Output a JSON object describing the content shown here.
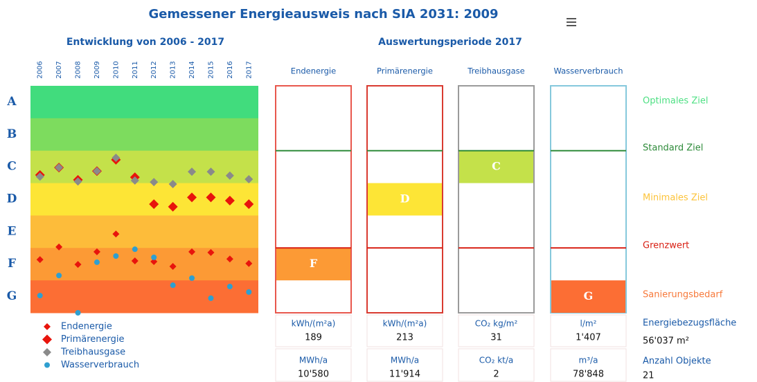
{
  "header": {
    "title": "Gemessener Energieausweis nach SIA 2031: 2009"
  },
  "chart_data": {
    "type": "scatter",
    "title": "Entwicklung von 2006 - 2017",
    "categories": [
      "2006",
      "2007",
      "2008",
      "2009",
      "2010",
      "2011",
      "2012",
      "2013",
      "2014",
      "2015",
      "2016",
      "2017"
    ],
    "classes": [
      "A",
      "B",
      "C",
      "D",
      "E",
      "F",
      "G"
    ],
    "class_colors": [
      "#41dc7d",
      "#7ddc5e",
      "#c4e14a",
      "#fde536",
      "#fdbc3a",
      "#fc9a35",
      "#fc6e34"
    ],
    "ylim": [
      0,
      7
    ],
    "series": [
      {
        "name": "Endenergie",
        "color": "#e8140c",
        "marker": "diamond",
        "size": 5,
        "values": [
          1.64,
          2.03,
          1.49,
          1.88,
          2.43,
          1.6,
          1.58,
          1.43,
          1.88,
          1.86,
          1.66,
          1.52
        ]
      },
      {
        "name": "Primärenergie",
        "color": "#e8140c",
        "marker": "diamond",
        "size": 7,
        "values": [
          4.25,
          4.48,
          4.1,
          4.37,
          4.72,
          4.18,
          3.35,
          3.27,
          3.56,
          3.56,
          3.46,
          3.35
        ]
      },
      {
        "name": "Treibhausgase",
        "color": "#8a8a8a",
        "marker": "diamond",
        "size": 6,
        "values": [
          4.2,
          4.48,
          4.05,
          4.37,
          4.78,
          4.08,
          4.03,
          3.97,
          4.35,
          4.35,
          4.23,
          4.12
        ]
      },
      {
        "name": "Wasserverbrauch",
        "color": "#2f9fd0",
        "marker": "circle",
        "size": 4,
        "values": [
          0.53,
          1.15,
          0,
          1.56,
          1.75,
          1.96,
          1.71,
          0.85,
          1.07,
          0.45,
          0.81,
          0.64
        ]
      }
    ]
  },
  "period": {
    "title": "Auswertungsperiode 2017",
    "columns": [
      {
        "name": "Endenergie",
        "border": "#e8574c",
        "rating": "F",
        "unit1": "kWh/(m²a)",
        "value1": "189",
        "unit2": "MWh/a",
        "value2": "10'580"
      },
      {
        "name": "Primärenergie",
        "border": "#d93a30",
        "rating": "D",
        "unit1": "kWh/(m²a)",
        "value1": "213",
        "unit2": "MWh/a",
        "value2": "11'914"
      },
      {
        "name": "Treibhausgase",
        "border": "#9a9a9a",
        "rating": "C",
        "unit1": "CO₂ kg/m²",
        "value1": "31",
        "unit2": "CO₂ kt/a",
        "value2": "2"
      },
      {
        "name": "Wasserverbrauch",
        "border": "#85c8dc",
        "rating": "G",
        "unit1": "l/m²",
        "value1": "1'407",
        "unit2": "m³/a",
        "value2": "78'848"
      }
    ],
    "targets": [
      {
        "label": "Optimales Ziel",
        "color": "#4fe084"
      },
      {
        "label": "Standard Ziel",
        "color": "#2e8b3a"
      },
      {
        "label": "Minimales Ziel",
        "color": "#fcc33a"
      },
      {
        "label": "Grenzwert",
        "color": "#d81e12"
      },
      {
        "label": "Sanierungsbedarf",
        "color": "#f7793a"
      }
    ],
    "area": {
      "label": "Energiebezugsfläche",
      "value": "56'037 m²"
    },
    "objects": {
      "label": "Anzahl Objekte",
      "value": "21"
    }
  }
}
